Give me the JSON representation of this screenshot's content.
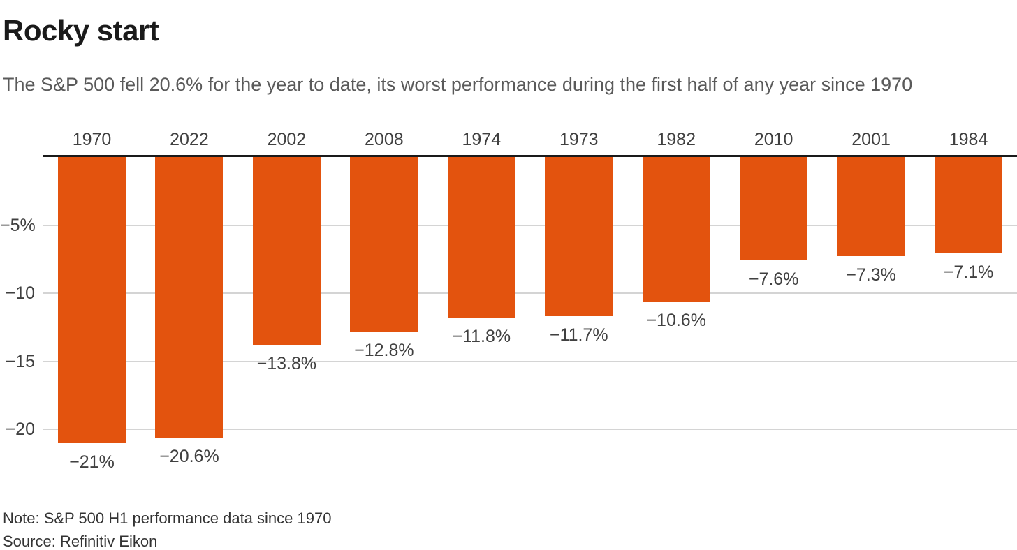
{
  "chart_data": {
    "type": "bar",
    "title": "Rocky start",
    "subtitle": "The S&P 500 fell 20.6% for the year to date, its worst performance during the first half of any year since 1970",
    "categories": [
      "1970",
      "2022",
      "2002",
      "2008",
      "1974",
      "1973",
      "1982",
      "2010",
      "2001",
      "1984"
    ],
    "series": [
      {
        "name": "S&P 500 first-half performance",
        "values": [
          -21,
          -20.6,
          -13.8,
          -12.8,
          -11.8,
          -11.7,
          -10.6,
          -7.6,
          -7.3,
          -7.1
        ]
      }
    ],
    "value_labels": [
      "−21%",
      "−20.6%",
      "−13.8%",
      "−12.8%",
      "−11.8%",
      "−11.7%",
      "−10.6%",
      "−7.6%",
      "−7.3%",
      "−7.1%"
    ],
    "yticks": [
      {
        "value": -5,
        "label": "−5%"
      },
      {
        "value": -10,
        "label": "−10"
      },
      {
        "value": -15,
        "label": "−15"
      },
      {
        "value": -20,
        "label": "−20"
      }
    ],
    "ylim": [
      -22,
      0
    ],
    "grid": true,
    "legend_position": "none",
    "xlabel": "",
    "ylabel": "",
    "colors": {
      "bar": "#e3530e",
      "baseline": "#1a1a1a",
      "gridline": "#d4d4d4",
      "title": "#1a1a1a",
      "subtitle": "#5a5a5a",
      "axis_labels": "#404040",
      "note": "#333333"
    },
    "note": "Note: S&P 500 H1 performance data since 1970",
    "source": "Source: Refinitiv Eikon"
  }
}
